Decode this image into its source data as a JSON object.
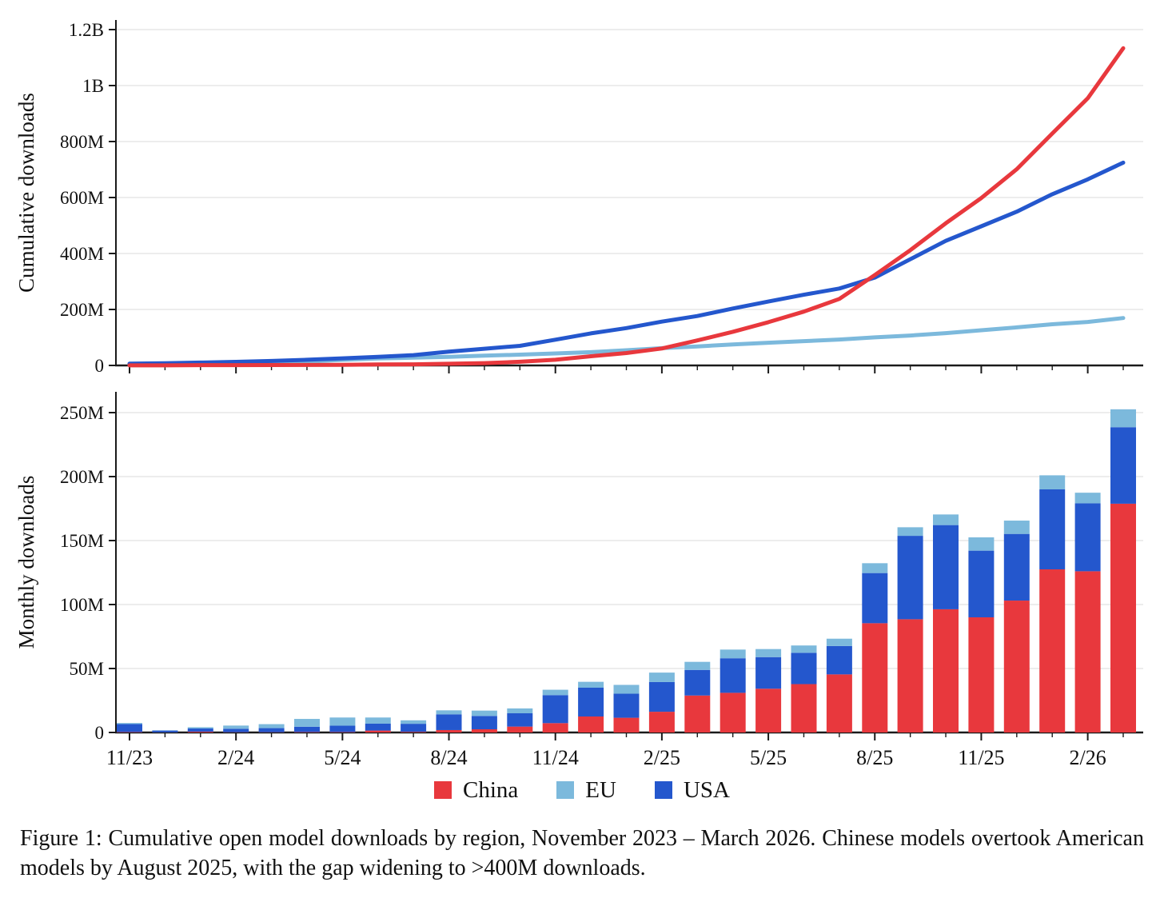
{
  "figure": {
    "caption": "Figure 1: Cumulative open model downloads by region, November 2023 – March 2026. Chinese models overtook American models by August 2025, with the gap widening to >400M downloads."
  },
  "legend": {
    "items": [
      {
        "label": "China",
        "color": "#e8383d"
      },
      {
        "label": "EU",
        "color": "#7cb9dc"
      },
      {
        "label": "USA",
        "color": "#2457cd"
      }
    ]
  },
  "colors": {
    "china": "#e8383d",
    "eu": "#7cb9dc",
    "usa": "#2457cd",
    "gridline": "#e7e7e7",
    "axis": "#1a1a1a",
    "text": "#111111"
  },
  "chart_data": [
    {
      "type": "line",
      "title": "",
      "xlabel": "",
      "ylabel": "Cumulative downloads",
      "unit": "millions",
      "ylim": [
        0,
        1200
      ],
      "grid": true,
      "legend_position": "shared-bottom",
      "x": [
        "11/23",
        "12/23",
        "1/24",
        "2/24",
        "3/24",
        "4/24",
        "5/24",
        "6/24",
        "7/24",
        "8/24",
        "9/24",
        "10/24",
        "11/24",
        "12/24",
        "1/25",
        "2/25",
        "3/25",
        "4/25",
        "5/25",
        "6/25",
        "7/25",
        "8/25",
        "9/25",
        "10/25",
        "11/25",
        "12/25",
        "1/26",
        "2/26",
        "3/26"
      ],
      "x_tick_labels": [
        "11/23",
        "2/24",
        "5/24",
        "8/24",
        "11/24",
        "2/25",
        "5/25",
        "8/25",
        "11/25",
        "2/26"
      ],
      "y_ticks": [
        {
          "value": 0,
          "label": "0"
        },
        {
          "value": 200,
          "label": "200M"
        },
        {
          "value": 400,
          "label": "400M"
        },
        {
          "value": 600,
          "label": "600M"
        },
        {
          "value": 800,
          "label": "800M"
        },
        {
          "value": 1000,
          "label": "1B"
        },
        {
          "value": 1200,
          "label": "1.2B"
        }
      ],
      "series": [
        {
          "name": "EU",
          "color": "#7cb9dc",
          "values": [
            0.8,
            1.0,
            2.0,
            4.5,
            7.6,
            13.7,
            20.1,
            24.9,
            27.6,
            30.7,
            34.9,
            38.7,
            42.9,
            47.5,
            54.4,
            61.8,
            68.1,
            74.9,
            81.2,
            86.9,
            92.6,
            100.3,
            107.0,
            115.3,
            125.7,
            136.1,
            147.1,
            155.4,
            169.4
          ]
        },
        {
          "name": "USA",
          "color": "#2457cd",
          "values": [
            6.3,
            7.7,
            10.2,
            12.9,
            16.1,
            20.3,
            25.3,
            30.7,
            37.0,
            49.3,
            59.7,
            70.1,
            92.0,
            114.5,
            133.3,
            156.5,
            176.5,
            203.5,
            228.2,
            252.7,
            274.9,
            314.1,
            379.3,
            445.1,
            497.2,
            549.3,
            611.8,
            664.9,
            724.7
          ]
        },
        {
          "name": "China",
          "color": "#e8383d",
          "values": [
            0.3,
            0.4,
            1.0,
            1.2,
            1.4,
            1.7,
            2.0,
            3.5,
            4.0,
            5.9,
            8.4,
            13.0,
            20.3,
            32.8,
            44.3,
            60.5,
            89.4,
            120.4,
            154.6,
            192.4,
            237.8,
            323.2,
            411.7,
            508.0,
            598.0,
            701.1,
            828.6,
            954.6,
            1133.4
          ]
        }
      ]
    },
    {
      "type": "bar",
      "stacked": true,
      "title": "",
      "xlabel": "",
      "ylabel": "Monthly downloads",
      "unit": "millions",
      "ylim": [
        0,
        260
      ],
      "grid": true,
      "stack_order_bottom_to_top": [
        "China",
        "USA",
        "EU"
      ],
      "categories": [
        "11/23",
        "12/23",
        "1/24",
        "2/24",
        "3/24",
        "4/24",
        "5/24",
        "6/24",
        "7/24",
        "8/24",
        "9/24",
        "10/24",
        "11/24",
        "12/24",
        "1/25",
        "2/25",
        "3/25",
        "4/25",
        "5/25",
        "6/25",
        "7/25",
        "8/25",
        "9/25",
        "10/25",
        "11/25",
        "12/25",
        "1/26",
        "2/26",
        "3/26"
      ],
      "x_tick_labels": [
        "11/23",
        "2/24",
        "5/24",
        "8/24",
        "11/24",
        "2/25",
        "5/25",
        "8/25",
        "11/25",
        "2/26"
      ],
      "y_ticks": [
        {
          "value": 0,
          "label": "0"
        },
        {
          "value": 50,
          "label": "50M"
        },
        {
          "value": 100,
          "label": "100M"
        },
        {
          "value": 150,
          "label": "150M"
        },
        {
          "value": 200,
          "label": "200M"
        },
        {
          "value": 250,
          "label": "250M"
        }
      ],
      "series": [
        {
          "name": "China",
          "color": "#e8383d",
          "values": [
            0.3,
            0.1,
            0.6,
            0.2,
            0.2,
            0.3,
            0.3,
            1.5,
            0.5,
            1.9,
            2.5,
            4.6,
            7.3,
            12.5,
            11.5,
            16.2,
            28.9,
            31.0,
            34.2,
            37.8,
            45.4,
            85.4,
            88.5,
            96.3,
            90.0,
            103.1,
            127.5,
            126.0,
            178.8
          ]
        },
        {
          "name": "USA",
          "color": "#2457cd",
          "values": [
            6.3,
            1.4,
            2.5,
            2.7,
            3.2,
            4.2,
            5.0,
            5.4,
            6.3,
            12.3,
            10.4,
            10.4,
            21.9,
            22.5,
            18.8,
            23.2,
            20.0,
            27.0,
            24.7,
            24.5,
            22.2,
            39.2,
            65.2,
            65.8,
            52.1,
            52.1,
            62.5,
            53.1,
            59.8
          ]
        },
        {
          "name": "EU",
          "color": "#7cb9dc",
          "values": [
            0.8,
            0.2,
            1.0,
            2.5,
            3.1,
            6.1,
            6.4,
            4.8,
            2.7,
            3.1,
            4.2,
            3.8,
            4.2,
            4.6,
            6.9,
            7.4,
            6.3,
            6.8,
            6.3,
            5.7,
            5.7,
            7.7,
            6.7,
            8.3,
            10.4,
            10.4,
            11.0,
            8.3,
            14.0
          ]
        }
      ]
    }
  ]
}
